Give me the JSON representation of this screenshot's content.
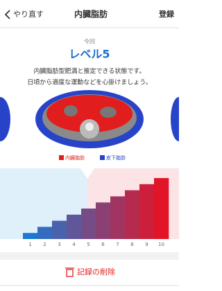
{
  "header": {
    "back": "やり直す",
    "title": "内臓脂肪",
    "action": "登録"
  },
  "result": {
    "caption": "今回",
    "level": "レベル5",
    "description": [
      "内臓脂肪型肥満と推定できる状態です。",
      "日頃から適度な運動などを心掛けましょう。"
    ]
  },
  "legend": [
    "内臓脂肪",
    "皮下脂肪"
  ],
  "levels": [
    1,
    2,
    3,
    4,
    5,
    6,
    7,
    8,
    9,
    10
  ],
  "delete_button": "記録の削除"
}
